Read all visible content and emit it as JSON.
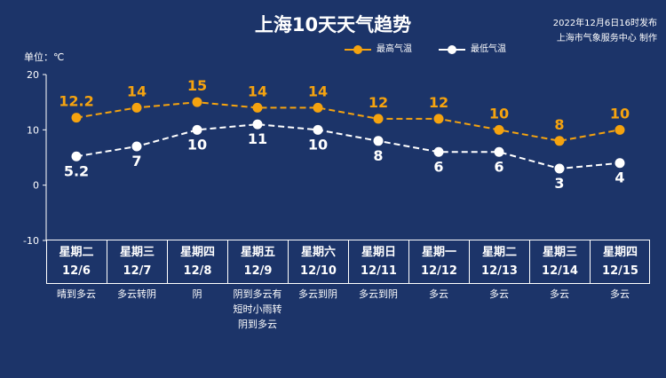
{
  "header": {
    "title": "上海10天天气趋势",
    "publish_time": "2022年12月6日16时发布",
    "publisher": "上海市气象服务中心 制作",
    "unit_label": "单位：℃"
  },
  "colors": {
    "background": "#1c3469",
    "high": "#f5a30f",
    "low": "#ffffff"
  },
  "chart_data": {
    "type": "line",
    "title": "上海10天天气趋势",
    "ylabel": "单位：℃",
    "ylim": [
      -10,
      20
    ],
    "yticks": [
      "20",
      "10",
      "0",
      "-10"
    ],
    "grid": false,
    "legend_position": "top-right",
    "categories": [
      "12/6",
      "12/7",
      "12/8",
      "12/9",
      "12/10",
      "12/11",
      "12/12",
      "12/13",
      "12/14",
      "12/15"
    ],
    "series": [
      {
        "name": "最高气温",
        "values": [
          12.2,
          14,
          15,
          14,
          14,
          12,
          12,
          10,
          8,
          10
        ],
        "labels": [
          "12.2",
          "14",
          "15",
          "14",
          "14",
          "12",
          "12",
          "10",
          "8",
          "10"
        ]
      },
      {
        "name": "最低气温",
        "values": [
          5.2,
          7,
          10,
          11,
          10,
          8,
          6,
          6,
          3,
          4
        ],
        "labels": [
          "5.2",
          "7",
          "10",
          "11",
          "10",
          "8",
          "6",
          "6",
          "3",
          "4"
        ]
      }
    ]
  },
  "days": [
    {
      "weekday": "星期二",
      "date": "12/6",
      "weather": "晴到多云"
    },
    {
      "weekday": "星期三",
      "date": "12/7",
      "weather": "多云转阴"
    },
    {
      "weekday": "星期四",
      "date": "12/8",
      "weather": "阴"
    },
    {
      "weekday": "星期五",
      "date": "12/9",
      "weather": "阴到多云有\n短时小雨转\n阴到多云"
    },
    {
      "weekday": "星期六",
      "date": "12/10",
      "weather": "多云到阴"
    },
    {
      "weekday": "星期日",
      "date": "12/11",
      "weather": "多云到阴"
    },
    {
      "weekday": "星期一",
      "date": "12/12",
      "weather": "多云"
    },
    {
      "weekday": "星期二",
      "date": "12/13",
      "weather": "多云"
    },
    {
      "weekday": "星期三",
      "date": "12/14",
      "weather": "多云"
    },
    {
      "weekday": "星期四",
      "date": "12/15",
      "weather": "多云"
    }
  ]
}
